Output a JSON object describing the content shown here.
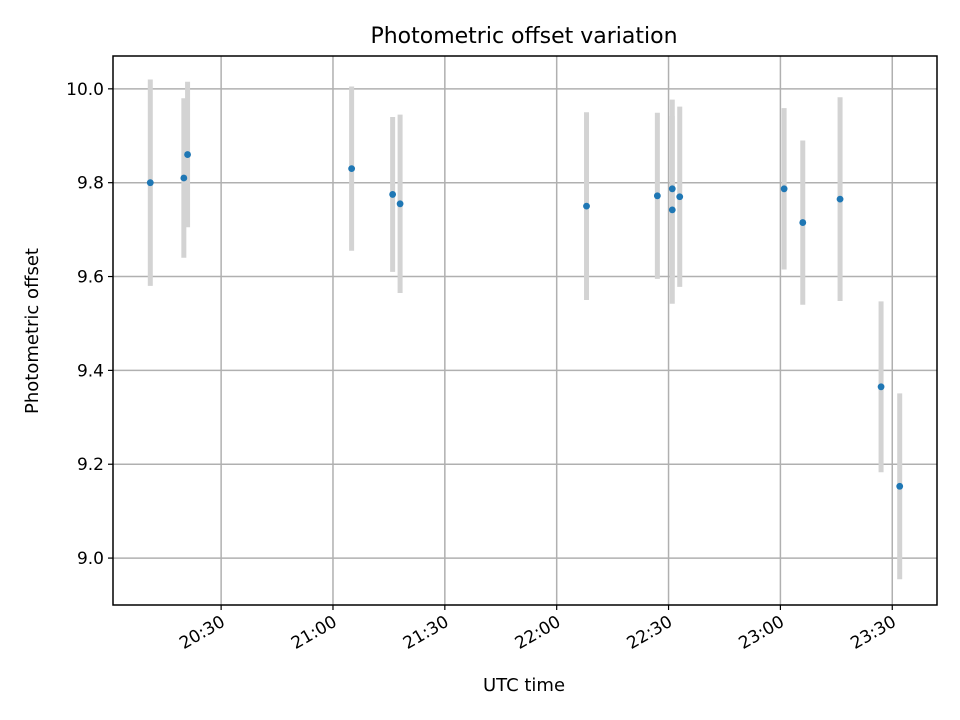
{
  "chart_data": {
    "type": "scatter",
    "title": "Photometric offset variation",
    "xlabel": "UTC time",
    "ylabel": "Photometric offset",
    "xlim": [
      "20:01",
      "23:42"
    ],
    "ylim": [
      8.9,
      10.07
    ],
    "x_ticks": [
      "20:30",
      "21:00",
      "21:30",
      "22:00",
      "22:30",
      "23:00",
      "23:30"
    ],
    "y_ticks": [
      "9.0",
      "9.2",
      "9.4",
      "9.6",
      "9.8",
      "10.0"
    ],
    "grid": true,
    "colors": {
      "point": "#1f77b4",
      "errorbar": "#d3d3d3"
    },
    "series": [
      {
        "x": [
          "20:11",
          "20:20",
          "20:21",
          "21:05",
          "21:16",
          "21:18",
          "22:08",
          "22:27",
          "22:31",
          "22:31",
          "22:33",
          "23:01",
          "23:06",
          "23:16",
          "23:27",
          "23:32"
        ],
        "y": [
          9.8,
          9.81,
          9.86,
          9.83,
          9.775,
          9.755,
          9.75,
          9.772,
          9.742,
          9.787,
          9.77,
          9.787,
          9.715,
          9.765,
          9.365,
          9.153
        ],
        "err": [
          0.22,
          0.17,
          0.155,
          0.175,
          0.165,
          0.19,
          0.2,
          0.177,
          0.2,
          0.19,
          0.192,
          0.172,
          0.175,
          0.217,
          0.182,
          0.198
        ]
      }
    ]
  }
}
